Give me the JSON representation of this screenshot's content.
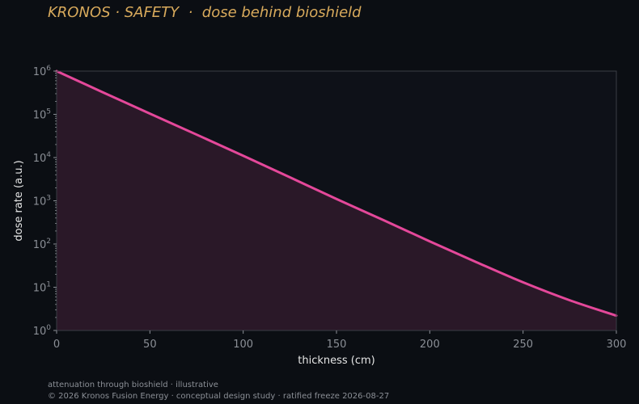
{
  "header": {
    "title": "KRONOS · SAFETY  ·  dose behind bioshield"
  },
  "footer": {
    "line1": "attenuation through bioshield · illustrative",
    "line2": "© 2026 Kronos Fusion Energy · conceptual design study · ratified freeze 2026-08-27"
  },
  "colors": {
    "background": "#0b0e13",
    "plot_background": "#0e1118",
    "title": "#d8aa5c",
    "series_line": "#e4489a",
    "series_fill": "#2a1828",
    "axis_text": "#8b8f96",
    "axis_title": "#e6e6e6",
    "frame": "#3a3d44"
  },
  "chart_data": {
    "type": "area",
    "title": "",
    "xlabel": "thickness (cm)",
    "ylabel": "dose rate (a.u.)",
    "xlim": [
      0,
      300
    ],
    "ylim": [
      1,
      1000000
    ],
    "yscale": "log",
    "grid": false,
    "x_ticks": [
      0,
      50,
      100,
      150,
      200,
      250,
      300
    ],
    "y_ticks": [
      {
        "base": "10",
        "exp": "0",
        "value": 1
      },
      {
        "base": "10",
        "exp": "1",
        "value": 10
      },
      {
        "base": "10",
        "exp": "2",
        "value": 100
      },
      {
        "base": "10",
        "exp": "3",
        "value": 1000
      },
      {
        "base": "10",
        "exp": "4",
        "value": 10000
      },
      {
        "base": "10",
        "exp": "5",
        "value": 100000
      },
      {
        "base": "10",
        "exp": "6",
        "value": 1000000
      }
    ],
    "series": [
      {
        "x": [
          0,
          25,
          50,
          75,
          100,
          125,
          150,
          175,
          200,
          225,
          250,
          275,
          300
        ],
        "y": [
          1000000,
          320000,
          104000,
          34000,
          11000,
          3500,
          1100,
          360,
          115,
          38,
          13,
          5,
          2.2
        ]
      }
    ]
  }
}
